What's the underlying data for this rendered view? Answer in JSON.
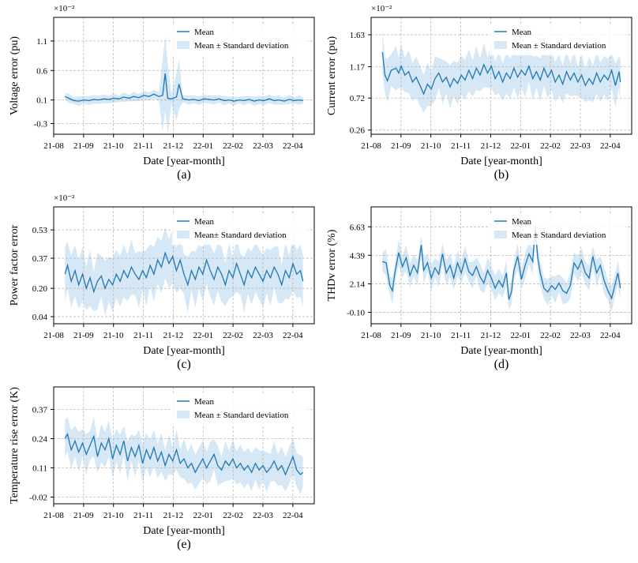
{
  "figure": {
    "xlabel": "Date [year-month]",
    "x_ticks": [
      "21-08",
      "21-09",
      "21-10",
      "21-11",
      "21-12",
      "22-01",
      "22-02",
      "22-03",
      "22-04"
    ],
    "legend": {
      "mean": "Mean",
      "std": "Mean ± Standard deviation",
      "std_alt": "Mean± Standard deviation"
    },
    "colors": {
      "line": "#1f77b4",
      "band": "#d6e8f5",
      "grid": "#b0b0b0",
      "axis": "#000000"
    }
  },
  "chart_data": [
    {
      "id": "a",
      "type": "line",
      "label": "(a)",
      "ylabel": "Voltage error (pu)",
      "multiplier": "×10⁻²",
      "yticks": [
        -0.3,
        0.1,
        0.6,
        1.1
      ],
      "yticklabels": [
        "-0.3",
        "0.1",
        "0.6",
        "1.1"
      ],
      "ylim": [
        -0.48,
        1.5
      ],
      "xlim": [
        0.0,
        10.4
      ],
      "mean": [
        [
          0.45,
          0.16
        ],
        [
          0.6,
          0.13
        ],
        [
          0.8,
          0.09
        ],
        [
          1.0,
          0.08
        ],
        [
          1.2,
          0.1
        ],
        [
          1.4,
          0.09
        ],
        [
          1.6,
          0.11
        ],
        [
          1.8,
          0.1
        ],
        [
          2.0,
          0.12
        ],
        [
          2.2,
          0.11
        ],
        [
          2.4,
          0.13
        ],
        [
          2.6,
          0.12
        ],
        [
          2.8,
          0.15
        ],
        [
          3.0,
          0.13
        ],
        [
          3.2,
          0.16
        ],
        [
          3.4,
          0.14
        ],
        [
          3.6,
          0.18
        ],
        [
          3.8,
          0.16
        ],
        [
          4.0,
          0.2
        ],
        [
          4.2,
          0.16
        ],
        [
          4.35,
          0.18
        ],
        [
          4.45,
          0.55
        ],
        [
          4.55,
          0.13
        ],
        [
          4.7,
          0.12
        ],
        [
          4.9,
          0.15
        ],
        [
          5.0,
          0.37
        ],
        [
          5.15,
          0.12
        ],
        [
          5.4,
          0.1
        ],
        [
          5.6,
          0.11
        ],
        [
          5.8,
          0.09
        ],
        [
          6.0,
          0.12
        ],
        [
          6.2,
          0.11
        ],
        [
          6.4,
          0.1
        ],
        [
          6.6,
          0.12
        ],
        [
          6.8,
          0.09
        ],
        [
          7.0,
          0.1
        ],
        [
          7.2,
          0.08
        ],
        [
          7.4,
          0.1
        ],
        [
          7.6,
          0.09
        ],
        [
          7.8,
          0.11
        ],
        [
          8.0,
          0.08
        ],
        [
          8.2,
          0.1
        ],
        [
          8.4,
          0.09
        ],
        [
          8.6,
          0.12
        ],
        [
          8.8,
          0.09
        ],
        [
          9.0,
          0.1
        ],
        [
          9.2,
          0.08
        ],
        [
          9.4,
          0.11
        ],
        [
          9.6,
          0.09
        ],
        [
          9.8,
          0.1
        ],
        [
          9.95,
          0.09
        ]
      ],
      "std_width": 0.08,
      "std_spikes": [
        [
          4.45,
          0.55
        ],
        [
          5.0,
          0.35
        ]
      ]
    },
    {
      "id": "b",
      "type": "line",
      "label": "(b)",
      "ylabel": "Current error (pu)",
      "multiplier": "×10⁻²",
      "yticks": [
        0.26,
        0.72,
        1.17,
        1.63
      ],
      "yticklabels": [
        "0.26",
        "0.72",
        "1.17",
        "1.63"
      ],
      "ylim": [
        0.2,
        1.88
      ],
      "xlim": [
        0.0,
        10.4
      ],
      "mean": [
        [
          0.45,
          1.38
        ],
        [
          0.55,
          1.05
        ],
        [
          0.65,
          0.97
        ],
        [
          0.8,
          1.12
        ],
        [
          1.0,
          1.15
        ],
        [
          1.1,
          1.08
        ],
        [
          1.2,
          1.18
        ],
        [
          1.35,
          1.05
        ],
        [
          1.5,
          1.1
        ],
        [
          1.65,
          0.95
        ],
        [
          1.8,
          1.02
        ],
        [
          1.95,
          0.9
        ],
        [
          2.1,
          0.78
        ],
        [
          2.25,
          0.92
        ],
        [
          2.4,
          0.85
        ],
        [
          2.55,
          1.0
        ],
        [
          2.7,
          1.08
        ],
        [
          2.85,
          0.95
        ],
        [
          3.0,
          1.02
        ],
        [
          3.15,
          0.88
        ],
        [
          3.3,
          1.0
        ],
        [
          3.45,
          0.93
        ],
        [
          3.6,
          1.05
        ],
        [
          3.75,
          0.98
        ],
        [
          3.9,
          1.12
        ],
        [
          4.05,
          1.0
        ],
        [
          4.2,
          1.15
        ],
        [
          4.35,
          1.05
        ],
        [
          4.5,
          1.2
        ],
        [
          4.65,
          1.08
        ],
        [
          4.8,
          1.18
        ],
        [
          4.95,
          1.0
        ],
        [
          5.1,
          1.1
        ],
        [
          5.25,
          0.95
        ],
        [
          5.4,
          1.08
        ],
        [
          5.55,
          1.0
        ],
        [
          5.7,
          1.15
        ],
        [
          5.85,
          1.02
        ],
        [
          6.0,
          1.12
        ],
        [
          6.15,
          1.05
        ],
        [
          6.3,
          1.18
        ],
        [
          6.45,
          1.0
        ],
        [
          6.6,
          1.1
        ],
        [
          6.75,
          0.98
        ],
        [
          6.9,
          1.15
        ],
        [
          7.05,
          1.02
        ],
        [
          7.2,
          1.12
        ],
        [
          7.35,
          0.95
        ],
        [
          7.5,
          1.05
        ],
        [
          7.65,
          0.92
        ],
        [
          7.8,
          1.1
        ],
        [
          7.95,
          0.98
        ],
        [
          8.1,
          1.08
        ],
        [
          8.25,
          0.95
        ],
        [
          8.4,
          1.05
        ],
        [
          8.55,
          0.9
        ],
        [
          8.7,
          1.0
        ],
        [
          8.85,
          0.92
        ],
        [
          9.0,
          1.08
        ],
        [
          9.15,
          0.95
        ],
        [
          9.3,
          1.05
        ],
        [
          9.45,
          0.98
        ],
        [
          9.6,
          1.12
        ],
        [
          9.75,
          0.9
        ],
        [
          9.9,
          1.1
        ],
        [
          9.95,
          0.95
        ]
      ],
      "std_width": 0.32
    },
    {
      "id": "c",
      "type": "line",
      "label": "(c)",
      "ylabel": "Power factor error",
      "multiplier": "×10⁻²",
      "yticks": [
        0.04,
        0.2,
        0.37,
        0.53
      ],
      "yticklabels": [
        "0.04",
        "0.20",
        "0.37",
        "0.53"
      ],
      "ylim": [
        0.0,
        0.66
      ],
      "xlim": [
        0.0,
        10.4
      ],
      "mean": [
        [
          0.45,
          0.28
        ],
        [
          0.55,
          0.33
        ],
        [
          0.7,
          0.24
        ],
        [
          0.85,
          0.3
        ],
        [
          1.0,
          0.22
        ],
        [
          1.15,
          0.28
        ],
        [
          1.3,
          0.2
        ],
        [
          1.45,
          0.26
        ],
        [
          1.6,
          0.18
        ],
        [
          1.75,
          0.24
        ],
        [
          1.9,
          0.27
        ],
        [
          2.05,
          0.2
        ],
        [
          2.2,
          0.25
        ],
        [
          2.35,
          0.22
        ],
        [
          2.5,
          0.28
        ],
        [
          2.65,
          0.24
        ],
        [
          2.8,
          0.3
        ],
        [
          2.95,
          0.26
        ],
        [
          3.1,
          0.32
        ],
        [
          3.25,
          0.28
        ],
        [
          3.4,
          0.25
        ],
        [
          3.55,
          0.3
        ],
        [
          3.7,
          0.26
        ],
        [
          3.85,
          0.33
        ],
        [
          4.0,
          0.28
        ],
        [
          4.15,
          0.36
        ],
        [
          4.3,
          0.32
        ],
        [
          4.45,
          0.4
        ],
        [
          4.6,
          0.34
        ],
        [
          4.75,
          0.38
        ],
        [
          4.9,
          0.3
        ],
        [
          5.05,
          0.36
        ],
        [
          5.2,
          0.28
        ],
        [
          5.35,
          0.22
        ],
        [
          5.5,
          0.3
        ],
        [
          5.65,
          0.25
        ],
        [
          5.8,
          0.32
        ],
        [
          5.95,
          0.28
        ],
        [
          6.1,
          0.36
        ],
        [
          6.25,
          0.3
        ],
        [
          6.4,
          0.25
        ],
        [
          6.55,
          0.32
        ],
        [
          6.7,
          0.28
        ],
        [
          6.85,
          0.22
        ],
        [
          7.0,
          0.3
        ],
        [
          7.15,
          0.26
        ],
        [
          7.3,
          0.34
        ],
        [
          7.45,
          0.28
        ],
        [
          7.6,
          0.22
        ],
        [
          7.75,
          0.3
        ],
        [
          7.9,
          0.26
        ],
        [
          8.05,
          0.32
        ],
        [
          8.2,
          0.28
        ],
        [
          8.35,
          0.24
        ],
        [
          8.5,
          0.3
        ],
        [
          8.65,
          0.26
        ],
        [
          8.8,
          0.32
        ],
        [
          8.95,
          0.28
        ],
        [
          9.1,
          0.22
        ],
        [
          9.25,
          0.3
        ],
        [
          9.4,
          0.26
        ],
        [
          9.55,
          0.34
        ],
        [
          9.7,
          0.28
        ],
        [
          9.85,
          0.3
        ],
        [
          9.95,
          0.24
        ]
      ],
      "std_width": 0.16
    },
    {
      "id": "d",
      "type": "line",
      "label": "(d)",
      "ylabel": "THDv error (%)",
      "multiplier": "",
      "yticks": [
        -0.1,
        2.14,
        4.39,
        6.63
      ],
      "yticklabels": [
        "-0.10",
        "2.14",
        "4.39",
        "6.63"
      ],
      "ylim": [
        -1.0,
        8.2
      ],
      "xlim": [
        0.0,
        10.4
      ],
      "mean": [
        [
          0.45,
          3.9
        ],
        [
          0.6,
          3.8
        ],
        [
          0.75,
          2.0
        ],
        [
          0.85,
          1.6
        ],
        [
          0.95,
          3.0
        ],
        [
          1.1,
          4.6
        ],
        [
          1.25,
          3.5
        ],
        [
          1.4,
          4.2
        ],
        [
          1.55,
          2.8
        ],
        [
          1.7,
          3.6
        ],
        [
          1.85,
          3.0
        ],
        [
          2.0,
          5.2
        ],
        [
          2.1,
          3.2
        ],
        [
          2.25,
          3.8
        ],
        [
          2.4,
          2.6
        ],
        [
          2.55,
          3.4
        ],
        [
          2.7,
          2.9
        ],
        [
          2.85,
          4.5
        ],
        [
          3.0,
          3.0
        ],
        [
          3.15,
          3.6
        ],
        [
          3.3,
          2.6
        ],
        [
          3.45,
          3.8
        ],
        [
          3.6,
          3.0
        ],
        [
          3.75,
          4.1
        ],
        [
          3.9,
          3.1
        ],
        [
          4.05,
          2.8
        ],
        [
          4.2,
          3.5
        ],
        [
          4.35,
          2.7
        ],
        [
          4.5,
          2.2
        ],
        [
          4.65,
          3.2
        ],
        [
          4.8,
          2.6
        ],
        [
          4.95,
          1.8
        ],
        [
          5.1,
          2.4
        ],
        [
          5.25,
          1.9
        ],
        [
          5.4,
          3.0
        ],
        [
          5.5,
          0.9
        ],
        [
          5.6,
          1.5
        ],
        [
          5.7,
          3.2
        ],
        [
          5.85,
          4.3
        ],
        [
          6.0,
          2.5
        ],
        [
          6.15,
          3.6
        ],
        [
          6.3,
          4.5
        ],
        [
          6.45,
          3.9
        ],
        [
          6.55,
          6.6
        ],
        [
          6.65,
          4.2
        ],
        [
          6.75,
          3.0
        ],
        [
          6.9,
          1.8
        ],
        [
          7.05,
          1.5
        ],
        [
          7.2,
          2.0
        ],
        [
          7.35,
          1.7
        ],
        [
          7.5,
          2.2
        ],
        [
          7.65,
          1.6
        ],
        [
          7.8,
          1.4
        ],
        [
          7.95,
          2.0
        ],
        [
          8.1,
          3.8
        ],
        [
          8.25,
          3.3
        ],
        [
          8.4,
          4.0
        ],
        [
          8.55,
          3.0
        ],
        [
          8.7,
          2.6
        ],
        [
          8.85,
          4.3
        ],
        [
          9.0,
          3.0
        ],
        [
          9.15,
          3.6
        ],
        [
          9.3,
          2.4
        ],
        [
          9.45,
          1.6
        ],
        [
          9.6,
          1.0
        ],
        [
          9.75,
          2.2
        ],
        [
          9.85,
          3.0
        ],
        [
          9.95,
          1.8
        ]
      ],
      "std_width": 1.05
    },
    {
      "id": "e",
      "type": "line",
      "label": "(e)",
      "ylabel": "Temperature rise error (K)",
      "multiplier": "",
      "yticks": [
        -0.02,
        0.11,
        0.24,
        0.37
      ],
      "yticklabels": [
        "-0.02",
        "0.11",
        "0.24",
        "0.37"
      ],
      "ylim": [
        -0.05,
        0.47
      ],
      "xlim": [
        0.0,
        10.4
      ],
      "mean": [
        [
          0.45,
          0.24
        ],
        [
          0.55,
          0.26
        ],
        [
          0.7,
          0.19
        ],
        [
          0.85,
          0.23
        ],
        [
          1.0,
          0.18
        ],
        [
          1.15,
          0.22
        ],
        [
          1.3,
          0.17
        ],
        [
          1.45,
          0.21
        ],
        [
          1.6,
          0.25
        ],
        [
          1.75,
          0.16
        ],
        [
          1.9,
          0.22
        ],
        [
          2.05,
          0.19
        ],
        [
          2.2,
          0.24
        ],
        [
          2.35,
          0.15
        ],
        [
          2.5,
          0.21
        ],
        [
          2.65,
          0.17
        ],
        [
          2.8,
          0.23
        ],
        [
          2.95,
          0.14
        ],
        [
          3.1,
          0.2
        ],
        [
          3.25,
          0.16
        ],
        [
          3.4,
          0.21
        ],
        [
          3.55,
          0.13
        ],
        [
          3.7,
          0.19
        ],
        [
          3.85,
          0.15
        ],
        [
          4.0,
          0.2
        ],
        [
          4.15,
          0.14
        ],
        [
          4.3,
          0.18
        ],
        [
          4.45,
          0.12
        ],
        [
          4.6,
          0.17
        ],
        [
          4.75,
          0.14
        ],
        [
          4.9,
          0.19
        ],
        [
          5.05,
          0.13
        ],
        [
          5.2,
          0.15
        ],
        [
          5.35,
          0.11
        ],
        [
          5.5,
          0.13
        ],
        [
          5.65,
          0.09
        ],
        [
          5.8,
          0.12
        ],
        [
          5.95,
          0.15
        ],
        [
          6.1,
          0.11
        ],
        [
          6.25,
          0.14
        ],
        [
          6.4,
          0.17
        ],
        [
          6.55,
          0.12
        ],
        [
          6.7,
          0.1
        ],
        [
          6.85,
          0.14
        ],
        [
          7.0,
          0.12
        ],
        [
          7.15,
          0.15
        ],
        [
          7.3,
          0.11
        ],
        [
          7.45,
          0.13
        ],
        [
          7.6,
          0.1
        ],
        [
          7.75,
          0.12
        ],
        [
          7.9,
          0.09
        ],
        [
          8.05,
          0.13
        ],
        [
          8.2,
          0.1
        ],
        [
          8.35,
          0.12
        ],
        [
          8.5,
          0.09
        ],
        [
          8.65,
          0.11
        ],
        [
          8.8,
          0.14
        ],
        [
          8.95,
          0.1
        ],
        [
          9.1,
          0.12
        ],
        [
          9.25,
          0.08
        ],
        [
          9.4,
          0.12
        ],
        [
          9.55,
          0.16
        ],
        [
          9.7,
          0.1
        ],
        [
          9.85,
          0.08
        ],
        [
          9.95,
          0.09
        ]
      ],
      "std_width": 0.09
    }
  ]
}
